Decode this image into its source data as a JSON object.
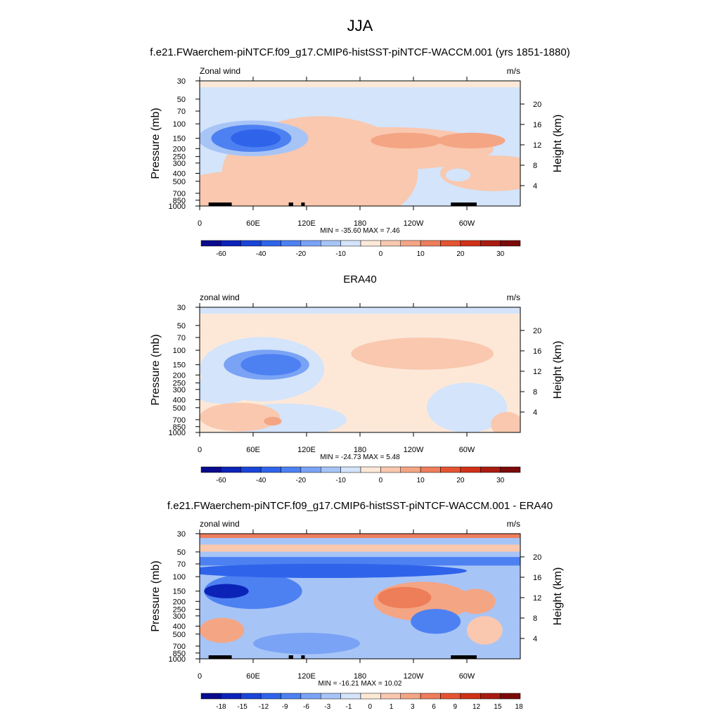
{
  "figure": {
    "title": "JJA",
    "subtitle": "f.e21.FWaerchem-piNTCF.f09_g17.CMIP6-histSST-piNTCF-WACCM.001 (yrs 1851-1880)"
  },
  "colors": {
    "abs_scale": [
      "#0a0a8c",
      "#0c23b8",
      "#1a45d8",
      "#2f64ea",
      "#4d81f2",
      "#7aa3f5",
      "#a7c4f7",
      "#d3e4fb",
      "#fde8d8",
      "#f9c8ae",
      "#f4a584",
      "#ee7d5a",
      "#e45432",
      "#cf3117",
      "#a91b10",
      "#7a0a0a"
    ],
    "diff_scale": [
      "#0a0a8c",
      "#0c23b8",
      "#1a45d8",
      "#2f64ea",
      "#4d81f2",
      "#7aa3f5",
      "#a7c4f7",
      "#d3e4fb",
      "#fde8d8",
      "#f9c8ae",
      "#f4a584",
      "#ee7d5a",
      "#e45432",
      "#cf3117",
      "#a91b10",
      "#7a0a0a"
    ],
    "land": "#000000"
  },
  "chart_data": [
    {
      "type": "heatmap",
      "title": "",
      "left_label": "Zonal wind",
      "units": "m/s",
      "xlabel": "",
      "ylabel": "Pressure (mb)",
      "ylabel_right": "Height (km)",
      "x_ticklabels": [
        "0",
        "60E",
        "120E",
        "180",
        "120W",
        "60W"
      ],
      "x_range": [
        0,
        360
      ],
      "pressure_ticks": [
        "30",
        "50",
        "70",
        "100",
        "150",
        "200",
        "250",
        "300",
        "400",
        "500",
        "700",
        "850",
        "1000"
      ],
      "height_ticks": [
        "20",
        "16",
        "12",
        "8",
        "4"
      ],
      "stats": "MIN = -35.60  MAX =   7.46",
      "colorbar_labels": [
        "-60",
        "-40",
        "-20",
        "-10",
        "0",
        "10",
        "20",
        "30"
      ],
      "scale": "abs",
      "background_level": "#d3e4fb",
      "blobs": [
        {
          "lon": 135,
          "p": 400,
          "dlon": 110,
          "dlogp": 1.6,
          "value": 2
        },
        {
          "lon": 210,
          "p": 200,
          "dlon": 120,
          "dlogp": 0.6,
          "value": 3
        },
        {
          "lon": 165,
          "p": 260,
          "dlon": 90,
          "dlogp": 0.6,
          "value": 3
        },
        {
          "lon": 232,
          "p": 160,
          "dlon": 40,
          "dlogp": 0.22,
          "value": 6
        },
        {
          "lon": 305,
          "p": 160,
          "dlon": 38,
          "dlogp": 0.22,
          "value": 6
        },
        {
          "lon": 330,
          "p": 400,
          "dlon": 60,
          "dlogp": 0.5,
          "value": 2
        },
        {
          "lon": 60,
          "p": 150,
          "dlon": 62,
          "dlogp": 0.5,
          "value": -12
        },
        {
          "lon": 58,
          "p": 150,
          "dlon": 45,
          "dlogp": 0.38,
          "value": -22
        },
        {
          "lon": 63,
          "p": 150,
          "dlon": 28,
          "dlogp": 0.25,
          "value": -34
        },
        {
          "lon": 35,
          "p": 600,
          "dlon": 55,
          "dlogp": 0.45,
          "value": 5
        },
        {
          "lon": 80,
          "p": 750,
          "dlon": 25,
          "dlogp": 0.25,
          "value": 5
        },
        {
          "lon": 290,
          "p": 420,
          "dlon": 14,
          "dlogp": 0.18,
          "value": -6
        },
        {
          "lon": 75,
          "p": 900,
          "dlon": 110,
          "dlogp": 0.15,
          "value": 2
        }
      ],
      "bands": [
        {
          "p": 30,
          "dlogp": 0.18,
          "value": -4
        }
      ],
      "land": [
        [
          10,
          35
        ],
        [
          28,
          36
        ],
        [
          100,
          105
        ],
        [
          114,
          118
        ],
        [
          282,
          311
        ]
      ]
    },
    {
      "type": "heatmap",
      "title": "ERA40",
      "left_label": "zonal wind",
      "units": "m/s",
      "xlabel": "",
      "ylabel": "Pressure (mb)",
      "ylabel_right": "Height (km)",
      "x_ticklabels": [
        "0",
        "60E",
        "120E",
        "180",
        "120W",
        "60W"
      ],
      "x_range": [
        0,
        360
      ],
      "pressure_ticks": [
        "30",
        "50",
        "70",
        "100",
        "150",
        "200",
        "250",
        "300",
        "400",
        "500",
        "700",
        "850",
        "1000"
      ],
      "height_ticks": [
        "20",
        "16",
        "12",
        "8",
        "4"
      ],
      "stats": "MIN = -24.73  MAX =   5.48",
      "colorbar_labels": [
        "-60",
        "-40",
        "-20",
        "-10",
        "0",
        "10",
        "20",
        "30"
      ],
      "scale": "abs",
      "background_level": "#fde8d8",
      "blobs": [
        {
          "lon": 70,
          "p": 170,
          "dlon": 70,
          "dlogp": 0.9,
          "value": -6
        },
        {
          "lon": 95,
          "p": 700,
          "dlon": 70,
          "dlogp": 0.45,
          "value": -6
        },
        {
          "lon": 25,
          "p": 300,
          "dlon": 35,
          "dlogp": 0.4,
          "value": -6
        },
        {
          "lon": 300,
          "p": 500,
          "dlon": 45,
          "dlogp": 0.7,
          "value": -6
        },
        {
          "lon": 75,
          "p": 150,
          "dlon": 48,
          "dlogp": 0.42,
          "value": -15
        },
        {
          "lon": 80,
          "p": 150,
          "dlon": 34,
          "dlogp": 0.3,
          "value": -22
        },
        {
          "lon": 85,
          "p": 150,
          "dlon": 22,
          "dlogp": 0.2,
          "value": -26
        },
        {
          "lon": 250,
          "p": 110,
          "dlon": 80,
          "dlogp": 0.45,
          "value": 2
        },
        {
          "lon": 45,
          "p": 650,
          "dlon": 45,
          "dlogp": 0.4,
          "value": 4
        },
        {
          "lon": 82,
          "p": 730,
          "dlon": 10,
          "dlogp": 0.12,
          "value": 6
        },
        {
          "lon": 345,
          "p": 800,
          "dlon": 18,
          "dlogp": 0.35,
          "value": 3
        }
      ],
      "bands": [
        {
          "p": 30,
          "dlogp": 0.18,
          "value": -5
        }
      ],
      "land": []
    },
    {
      "type": "heatmap",
      "title": "f.e21.FWaerchem-piNTCF.f09_g17.CMIP6-histSST-piNTCF-WACCM.001 - ERA40",
      "left_label": "zonal wind",
      "units": "m/s",
      "xlabel": "",
      "ylabel": "Pressure (mb)",
      "ylabel_right": "Height (km)",
      "x_ticklabels": [
        "0",
        "60E",
        "120E",
        "180",
        "120W",
        "60W"
      ],
      "x_range": [
        0,
        360
      ],
      "pressure_ticks": [
        "30",
        "50",
        "70",
        "100",
        "150",
        "200",
        "250",
        "300",
        "400",
        "500",
        "700",
        "850",
        "1000"
      ],
      "height_ticks": [
        "20",
        "16",
        "12",
        "8",
        "4"
      ],
      "stats": "MIN = -16.21  MAX = 10.02",
      "colorbar_labels": [
        "-18",
        "-15",
        "-12",
        "-9",
        "-6",
        "-3",
        "-1",
        "0",
        "1",
        "3",
        "6",
        "9",
        "12",
        "15",
        "18"
      ],
      "scale": "diff",
      "background_level": "#a7c4f7",
      "blobs": [
        {
          "lon": 180,
          "p": 250,
          "dlon": 55,
          "dlogp": 0.65,
          "value": -2
        },
        {
          "lon": 250,
          "p": 200,
          "dlon": 55,
          "dlogp": 0.55,
          "value": 4
        },
        {
          "lon": 230,
          "p": 180,
          "dlon": 30,
          "dlogp": 0.3,
          "value": 8
        },
        {
          "lon": 310,
          "p": 200,
          "dlon": 22,
          "dlogp": 0.35,
          "value": 6
        },
        {
          "lon": 265,
          "p": 350,
          "dlon": 28,
          "dlogp": 0.35,
          "value": -6
        },
        {
          "lon": 60,
          "p": 150,
          "dlon": 55,
          "dlogp": 0.5,
          "value": -8
        },
        {
          "lon": 30,
          "p": 150,
          "dlon": 25,
          "dlogp": 0.2,
          "value": -15
        },
        {
          "lon": 25,
          "p": 450,
          "dlon": 25,
          "dlogp": 0.35,
          "value": 5
        },
        {
          "lon": 140,
          "p": 85,
          "dlon": 160,
          "dlogp": 0.2,
          "value": -9
        },
        {
          "lon": 320,
          "p": 450,
          "dlon": 20,
          "dlogp": 0.4,
          "value": 2
        },
        {
          "lon": 120,
          "p": 650,
          "dlon": 60,
          "dlogp": 0.3,
          "value": -3
        }
      ],
      "bands": [
        {
          "p": 30,
          "dlogp": 0.12,
          "value": 9
        },
        {
          "p": 45,
          "dlogp": 0.1,
          "value": 3
        },
        {
          "p": 65,
          "dlogp": 0.12,
          "value": -8
        }
      ],
      "land": [
        [
          10,
          35
        ],
        [
          28,
          36
        ],
        [
          100,
          105
        ],
        [
          114,
          118
        ],
        [
          282,
          311
        ]
      ]
    }
  ]
}
